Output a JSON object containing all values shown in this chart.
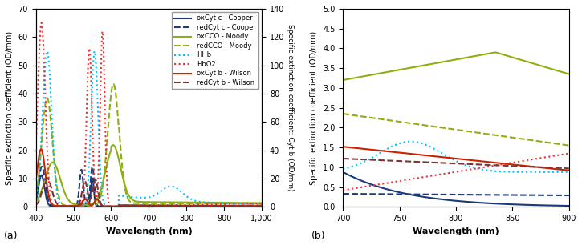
{
  "panel_a": {
    "xlim": [
      400,
      1000
    ],
    "ylim_left": [
      0,
      70
    ],
    "ylim_right": [
      0,
      140
    ],
    "xlabel": "Wavelength (nm)",
    "ylabel_left": "Specific extinction coefficient (OD/mm)",
    "ylabel_right": "Specific extinction coefficient: Cyt b (OD/mm)",
    "label_a": "(a)",
    "xticks": [
      400,
      500,
      600,
      700,
      800,
      900,
      1000
    ],
    "xticklabels": [
      "400",
      "500",
      "600",
      "700",
      "800",
      "900",
      "1,000"
    ],
    "yticks_left": [
      0,
      10,
      20,
      30,
      40,
      50,
      60,
      70
    ],
    "yticks_right": [
      0,
      20,
      40,
      60,
      80,
      100,
      120,
      140
    ]
  },
  "panel_b": {
    "xlim": [
      700,
      900
    ],
    "ylim": [
      0,
      5.0
    ],
    "xlabel": "Wavelength (nm)",
    "ylabel": "Specific extinction coefficient (OD/mm)",
    "label_b": "(b)",
    "xticks": [
      700,
      750,
      800,
      850,
      900
    ],
    "yticks": [
      0.0,
      0.5,
      1.0,
      1.5,
      2.0,
      2.5,
      3.0,
      3.5,
      4.0,
      4.5,
      5.0
    ]
  },
  "colors": {
    "oxcytc": "#1A3A7A",
    "redcytc": "#1A3A7A",
    "oxcco": "#8DB010",
    "redcco": "#8DB010",
    "hhb": "#00BFFF",
    "hbo2": "#EE3030",
    "oxcytb": "#CC2200",
    "redcytb": "#7B3535"
  },
  "legend_labels": [
    "oxCyt c - Cooper",
    "redCyt c - Cooper",
    "oxCCO - Moody",
    "redCCO - Moody",
    "HHb",
    "HbO2",
    "oxCyt b - Wilson",
    "redCyt b - Wilson"
  ]
}
